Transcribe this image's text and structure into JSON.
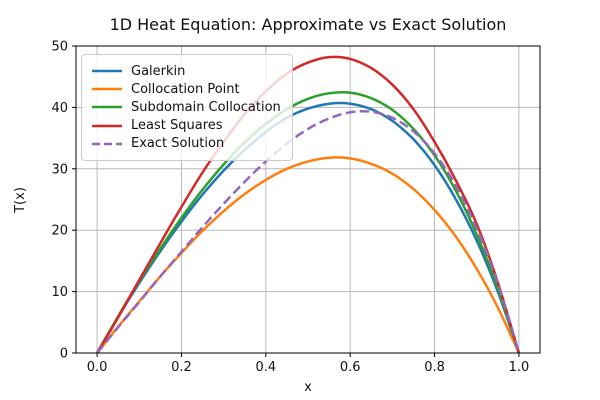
{
  "chart_data": {
    "type": "line",
    "title": "1D Heat Equation: Approximate vs Exact Solution",
    "xlabel": "x",
    "ylabel": "T(x)",
    "xlim": [
      -0.05,
      1.05
    ],
    "ylim": [
      0,
      50
    ],
    "grid": true,
    "legend_position": "upper left",
    "x_ticks": {
      "labels": [
        "0.0",
        "0.2",
        "0.4",
        "0.6",
        "0.8",
        "1.0"
      ],
      "values": [
        0,
        0.2,
        0.4,
        0.6,
        0.8,
        1.0
      ]
    },
    "y_ticks": {
      "labels": [
        "0",
        "10",
        "20",
        "30",
        "40",
        "50"
      ],
      "values": [
        0,
        10,
        20,
        30,
        40,
        50
      ]
    },
    "x": [
      0,
      0.05,
      0.1,
      0.15,
      0.2,
      0.25,
      0.3,
      0.35,
      0.4,
      0.45,
      0.5,
      0.55,
      0.6,
      0.65,
      0.7,
      0.75,
      0.8,
      0.85,
      0.9,
      0.95,
      1.0
    ],
    "series": [
      {
        "name": "Galerkin",
        "color": "#1f77b4",
        "linestyle": "solid",
        "values": [
          0,
          5.9,
          11.4,
          16.6,
          21.4,
          25.8,
          29.7,
          33.1,
          36.0,
          38.3,
          39.8,
          40.6,
          40.6,
          39.7,
          37.8,
          34.8,
          30.6,
          25.1,
          18.3,
          10.0,
          0
        ]
      },
      {
        "name": "Collocation Point",
        "color": "#ff7f0e",
        "linestyle": "solid",
        "values": [
          0,
          4.3,
          8.4,
          12.5,
          16.3,
          19.9,
          23.1,
          25.9,
          28.2,
          30.0,
          31.2,
          31.8,
          31.7,
          30.8,
          29.2,
          26.7,
          23.3,
          19.0,
          13.7,
          7.4,
          0
        ]
      },
      {
        "name": "Subdomain Collocation",
        "color": "#2ca02c",
        "linestyle": "solid",
        "values": [
          0,
          6.0,
          11.7,
          17.0,
          22.0,
          26.6,
          30.7,
          34.3,
          37.3,
          39.7,
          41.4,
          42.3,
          42.4,
          41.5,
          39.6,
          36.5,
          32.2,
          26.5,
          19.3,
          10.5,
          0
        ]
      },
      {
        "name": "Least Squares",
        "color": "#d62728",
        "linestyle": "solid",
        "values": [
          0,
          5.8,
          11.9,
          17.9,
          23.8,
          29.4,
          34.4,
          38.9,
          42.6,
          45.5,
          47.3,
          48.2,
          47.9,
          46.4,
          43.7,
          39.7,
          34.4,
          28.2,
          21.0,
          11.5,
          0
        ]
      },
      {
        "name": "Exact Solution",
        "color": "#9467bd",
        "linestyle": "dashed",
        "values": [
          0,
          4.2,
          8.3,
          12.5,
          16.5,
          20.5,
          24.3,
          27.9,
          31.2,
          34.1,
          36.5,
          38.2,
          39.2,
          39.3,
          38.3,
          36.1,
          32.5,
          27.3,
          20.3,
          11.3,
          0
        ]
      }
    ],
    "style": {
      "grid_color": "#b8b8b8",
      "spine_color": "#000000",
      "line_width": 2.5
    }
  }
}
